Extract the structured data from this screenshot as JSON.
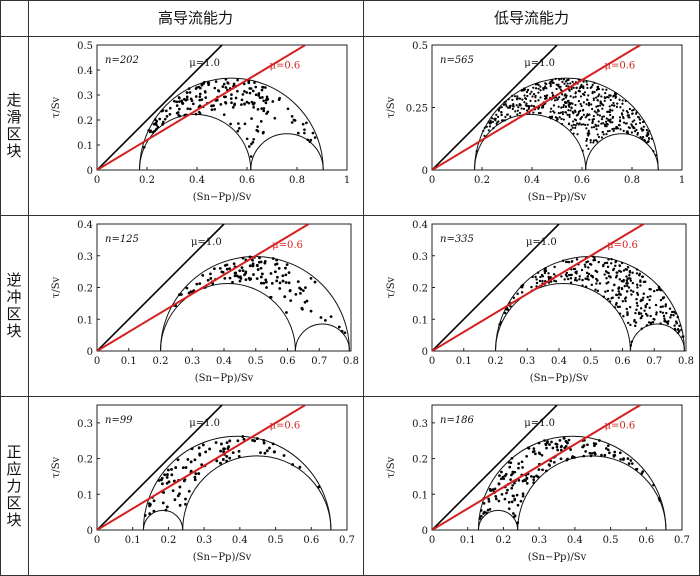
{
  "headers": {
    "col1": "高导流能力",
    "col2": "低导流能力"
  },
  "rows": [
    {
      "label": "走滑区块"
    },
    {
      "label": "逆冲区块"
    },
    {
      "label": "正应力区块"
    }
  ],
  "colors": {
    "mu06": "#d42020",
    "mu10": "#000000",
    "points": "#000000"
  },
  "chart_data": [
    {
      "type": "scatter",
      "row": 0,
      "col": 0,
      "n_label": "n=202",
      "n": 202,
      "xlim": [
        0,
        1
      ],
      "ylim": [
        0,
        0.5
      ],
      "xticks": [
        "0",
        "0.2",
        "0.4",
        "0.6",
        "0.8",
        "1"
      ],
      "xtick_values": [
        0,
        0.2,
        0.4,
        0.6,
        0.8,
        1
      ],
      "yticks": [
        "0.1",
        "0.2",
        "0.3",
        "0.4",
        "0.5"
      ],
      "ytick_values": [
        0.1,
        0.2,
        0.3,
        0.4,
        0.5
      ],
      "xlabel": "(Sn−Pp)/Sv",
      "ylabel": "τ/Sv",
      "mu10_label": "μ=1.0",
      "mu06_label": "μ=0.6",
      "circles": [
        [
          0.17,
          0.905
        ],
        [
          0.17,
          0.615
        ],
        [
          0.615,
          0.905
        ]
      ],
      "spread": "upper"
    },
    {
      "type": "scatter",
      "row": 0,
      "col": 1,
      "n_label": "n=565",
      "n": 565,
      "xlim": [
        0,
        1
      ],
      "ylim": [
        0,
        0.5
      ],
      "xticks": [
        "0",
        "0.2",
        "0.4",
        "0.6",
        "0.8",
        "1"
      ],
      "xtick_values": [
        0,
        0.2,
        0.4,
        0.6,
        0.8,
        1
      ],
      "yticks": [
        "0.25",
        "0.5"
      ],
      "ytick_values": [
        0.25,
        0.5
      ],
      "xlabel": "(Sn−Pp)/Sv",
      "ylabel": "τ/Sv",
      "mu10_label": "μ=1.0",
      "mu06_label": "μ=0.6",
      "circles": [
        [
          0.17,
          0.905
        ],
        [
          0.17,
          0.615
        ],
        [
          0.615,
          0.905
        ]
      ],
      "spread": "full"
    },
    {
      "type": "scatter",
      "row": 1,
      "col": 0,
      "n_label": "n=125",
      "n": 125,
      "xlim": [
        0,
        0.8
      ],
      "ylim": [
        0,
        0.4
      ],
      "xticks": [
        "0",
        "0.1",
        "0.2",
        "0.3",
        "0.4",
        "0.5",
        "0.6",
        "0.7",
        "0.8"
      ],
      "xtick_values": [
        0,
        0.1,
        0.2,
        0.3,
        0.4,
        0.5,
        0.6,
        0.7,
        0.8
      ],
      "yticks": [
        "0.1",
        "0.2",
        "0.3",
        "0.4"
      ],
      "ytick_values": [
        0.1,
        0.2,
        0.3,
        0.4
      ],
      "xlabel": "(Sn−Pp)/Sv",
      "ylabel": "τ/Sv",
      "mu10_label": "μ=1.0",
      "mu06_label": "μ=0.6",
      "circles": [
        [
          0.2,
          0.795
        ],
        [
          0.2,
          0.625
        ],
        [
          0.625,
          0.795
        ]
      ],
      "spread": "upper"
    },
    {
      "type": "scatter",
      "row": 1,
      "col": 1,
      "n_label": "n=335",
      "n": 335,
      "xlim": [
        0,
        0.8
      ],
      "ylim": [
        0,
        0.4
      ],
      "xticks": [
        "0",
        "0.1",
        "0.2",
        "0.3",
        "0.4",
        "0.5",
        "0.6",
        "0.7",
        "0.8"
      ],
      "xtick_values": [
        0,
        0.1,
        0.2,
        0.3,
        0.4,
        0.5,
        0.6,
        0.7,
        0.8
      ],
      "yticks": [
        "0.1",
        "0.2",
        "0.3",
        "0.4"
      ],
      "ytick_values": [
        0.1,
        0.2,
        0.3,
        0.4
      ],
      "xlabel": "(Sn−Pp)/Sv",
      "ylabel": "τ/Sv",
      "mu10_label": "μ=1.0",
      "mu06_label": "μ=0.6",
      "circles": [
        [
          0.2,
          0.795
        ],
        [
          0.2,
          0.625
        ],
        [
          0.625,
          0.795
        ]
      ],
      "spread": "full"
    },
    {
      "type": "scatter",
      "row": 2,
      "col": 0,
      "n_label": "n=99",
      "n": 99,
      "xlim": [
        0,
        0.7
      ],
      "ylim": [
        0,
        0.35
      ],
      "xticks": [
        "0",
        "0.1",
        "0.2",
        "0.3",
        "0.4",
        "0.5",
        "0.6",
        "0.7"
      ],
      "xtick_values": [
        0,
        0.1,
        0.2,
        0.3,
        0.4,
        0.5,
        0.6,
        0.7
      ],
      "yticks": [
        "0.1",
        "0.2",
        "0.3"
      ],
      "ytick_values": [
        0.1,
        0.2,
        0.3
      ],
      "xlabel": "(Sn−Pp)/Sv",
      "ylabel": "τ/Sv",
      "mu10_label": "μ=1.0",
      "mu06_label": "μ=0.6",
      "circles": [
        [
          0.13,
          0.655
        ],
        [
          0.13,
          0.24
        ],
        [
          0.24,
          0.655
        ]
      ],
      "spread": "upper"
    },
    {
      "type": "scatter",
      "row": 2,
      "col": 1,
      "n_label": "n=186",
      "n": 186,
      "xlim": [
        0,
        0.7
      ],
      "ylim": [
        0,
        0.35
      ],
      "xticks": [
        "0",
        "0.1",
        "0.2",
        "0.3",
        "0.4",
        "0.5",
        "0.6",
        "0.7"
      ],
      "xtick_values": [
        0,
        0.1,
        0.2,
        0.3,
        0.4,
        0.5,
        0.6,
        0.7
      ],
      "yticks": [
        "0.1",
        "0.2",
        "0.3"
      ],
      "ytick_values": [
        0.1,
        0.2,
        0.3
      ],
      "xlabel": "(Sn−Pp)/Sv",
      "ylabel": "τ/Sv",
      "mu10_label": "μ=1.0",
      "mu06_label": "μ=0.6",
      "circles": [
        [
          0.13,
          0.655
        ],
        [
          0.13,
          0.24
        ],
        [
          0.24,
          0.655
        ]
      ],
      "spread": "full"
    }
  ]
}
